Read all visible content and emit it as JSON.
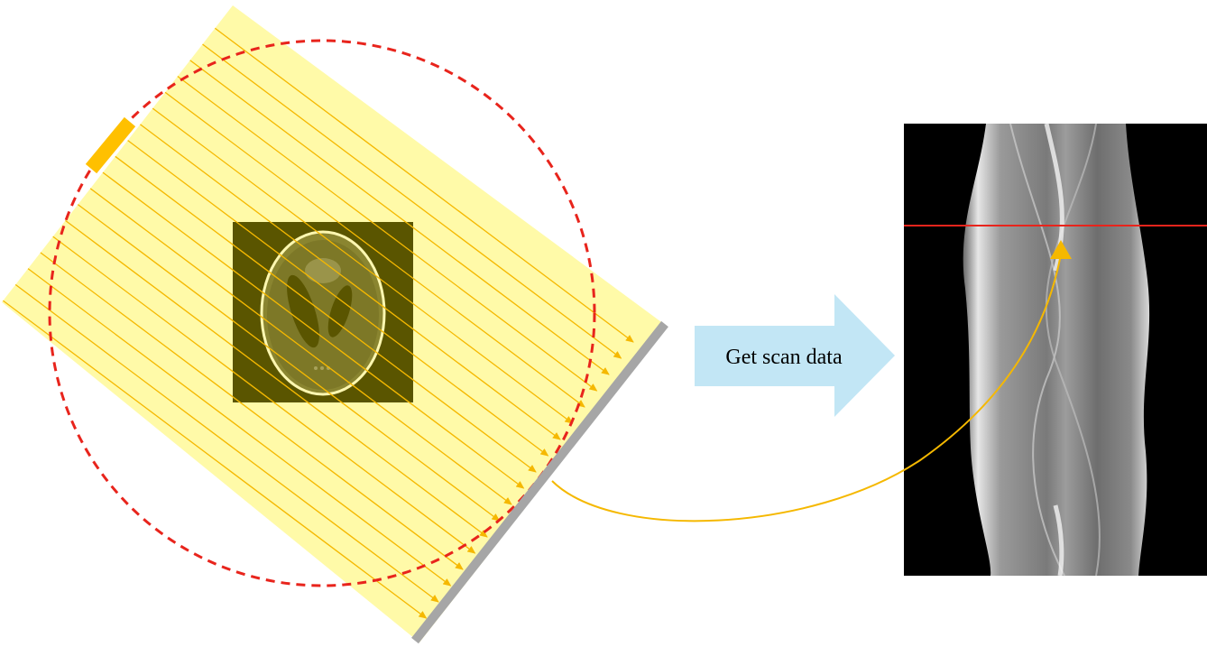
{
  "arrow_label": "Get scan data",
  "colors": {
    "beam_fill": "#fffaa8",
    "ray": "#f5b800",
    "orbit": "#e8241c",
    "source": "#ffc000",
    "detector": "#a6a6a6",
    "phantom_bg": "#5a5500",
    "phantom_ring": "#fdf7b0",
    "arrow_fill": "#c2e6f5",
    "sinogram_bg": "#000000",
    "sinogram_marker": "#e8241c"
  },
  "icons": {
    "phantom": "shepp-logan-phantom",
    "sinogram": "sinogram-image",
    "source": "x-ray-source",
    "detector": "detector-panel",
    "process_arrow": "right-arrow"
  }
}
